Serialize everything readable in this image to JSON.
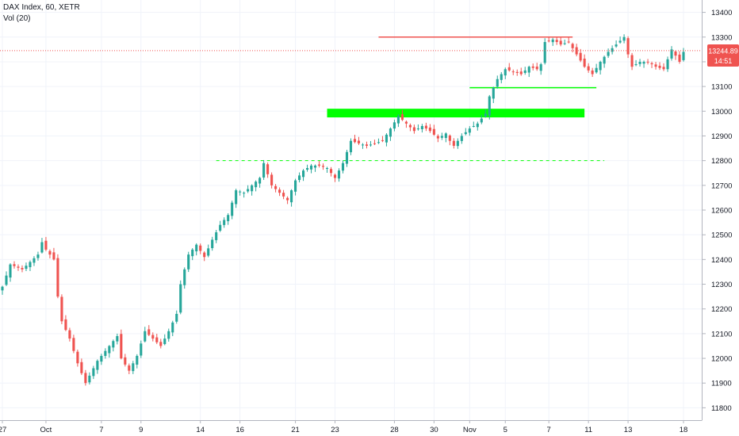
{
  "header": {
    "title": "DAX Index, 60, XETR",
    "indicator": "Vol (20)"
  },
  "colors": {
    "up": "#26a69a",
    "down": "#ef5350",
    "support": "#00ff00",
    "resistance": "#ef5350",
    "price_label": "#ef5350",
    "axis_text": "#131722",
    "grid": "#f0f3fa"
  },
  "chart_data": {
    "type": "candlestick",
    "title": "DAX Index, 60, XETR",
    "ylim": [
      11750,
      13450
    ],
    "y_ticks": [
      11800,
      11900,
      12000,
      12100,
      12200,
      12300,
      12400,
      12500,
      12600,
      12700,
      12800,
      12900,
      13000,
      13100,
      13200,
      13300,
      13400
    ],
    "x_ticks": [
      "27",
      "Oct",
      "7",
      "9",
      "14",
      "16",
      "21",
      "23",
      "28",
      "30",
      "Nov",
      "5",
      "7",
      "11",
      "13",
      "18"
    ],
    "x_tick_slots": [
      0,
      11,
      25,
      35,
      50,
      60,
      74,
      84,
      99,
      109,
      118,
      127,
      138,
      148,
      158,
      172
    ],
    "current_price": {
      "value": 13244.89,
      "label": "13244.89",
      "countdown": "14:51"
    },
    "close_path": [
      [
        0,
        12290
      ],
      [
        2,
        12380
      ],
      [
        5,
        12360
      ],
      [
        9,
        12420
      ],
      [
        10,
        12470
      ],
      [
        11,
        12440
      ],
      [
        13,
        12400
      ],
      [
        14,
        12250
      ],
      [
        15,
        12150
      ],
      [
        17,
        12080
      ],
      [
        19,
        11980
      ],
      [
        21,
        11900
      ],
      [
        24,
        11990
      ],
      [
        27,
        12050
      ],
      [
        29,
        12090
      ],
      [
        30,
        12000
      ],
      [
        32,
        11950
      ],
      [
        34,
        12010
      ],
      [
        36,
        12110
      ],
      [
        38,
        12080
      ],
      [
        40,
        12050
      ],
      [
        42,
        12110
      ],
      [
        44,
        12180
      ],
      [
        45,
        12300
      ],
      [
        47,
        12420
      ],
      [
        49,
        12460
      ],
      [
        51,
        12410
      ],
      [
        53,
        12480
      ],
      [
        55,
        12540
      ],
      [
        57,
        12580
      ],
      [
        59,
        12680
      ],
      [
        61,
        12670
      ],
      [
        63,
        12700
      ],
      [
        65,
        12730
      ],
      [
        66,
        12790
      ],
      [
        68,
        12700
      ],
      [
        70,
        12670
      ],
      [
        72,
        12640
      ],
      [
        74,
        12720
      ],
      [
        76,
        12760
      ],
      [
        78,
        12780
      ],
      [
        80,
        12780
      ],
      [
        82,
        12770
      ],
      [
        84,
        12730
      ],
      [
        86,
        12790
      ],
      [
        88,
        12880
      ],
      [
        90,
        12870
      ],
      [
        92,
        12860
      ],
      [
        94,
        12870
      ],
      [
        96,
        12880
      ],
      [
        98,
        12930
      ],
      [
        100,
        12980
      ],
      [
        102,
        12950
      ],
      [
        104,
        12920
      ],
      [
        106,
        12940
      ],
      [
        108,
        12920
      ],
      [
        110,
        12890
      ],
      [
        112,
        12910
      ],
      [
        113,
        12880
      ],
      [
        114,
        12860
      ],
      [
        116,
        12900
      ],
      [
        118,
        12930
      ],
      [
        120,
        12950
      ],
      [
        122,
        12990
      ],
      [
        123,
        13060
      ],
      [
        125,
        13130
      ],
      [
        127,
        13170
      ],
      [
        129,
        13160
      ],
      [
        131,
        13150
      ],
      [
        133,
        13180
      ],
      [
        135,
        13170
      ],
      [
        136,
        13190
      ],
      [
        137,
        13280
      ],
      [
        139,
        13290
      ],
      [
        141,
        13270
      ],
      [
        143,
        13280
      ],
      [
        145,
        13230
      ],
      [
        147,
        13180
      ],
      [
        149,
        13150
      ],
      [
        151,
        13200
      ],
      [
        153,
        13240
      ],
      [
        155,
        13270
      ],
      [
        157,
        13300
      ],
      [
        158,
        13230
      ],
      [
        159,
        13180
      ],
      [
        161,
        13200
      ],
      [
        163,
        13200
      ],
      [
        165,
        13180
      ],
      [
        167,
        13170
      ],
      [
        169,
        13250
      ],
      [
        171,
        13200
      ],
      [
        172,
        13240
      ]
    ],
    "annotations": [
      {
        "kind": "hline",
        "style": "solid",
        "color": "#ef5350",
        "value": 13300,
        "from_slot": 95,
        "to_slot": 144
      },
      {
        "kind": "zone",
        "color": "#00ff00",
        "y1": 12975,
        "y2": 13010,
        "from_slot": 82,
        "to_slot": 147
      },
      {
        "kind": "hline",
        "style": "solid",
        "color": "#00ff00",
        "value": 13095,
        "from_slot": 118,
        "to_slot": 150
      },
      {
        "kind": "hline",
        "style": "dashed",
        "color": "#00ff00",
        "value": 12800,
        "from_slot": 54,
        "to_slot": 152
      },
      {
        "kind": "hline",
        "style": "dotted",
        "color": "#ef5350",
        "value": 13245,
        "from_slot": 0,
        "to_slot": 172
      }
    ]
  }
}
